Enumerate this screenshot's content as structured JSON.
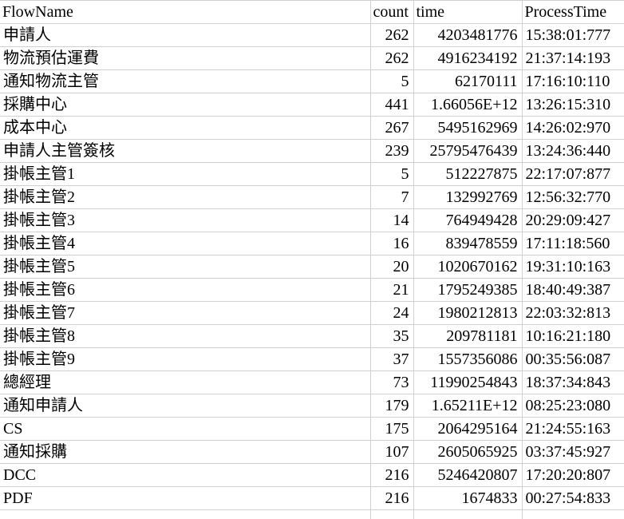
{
  "colors": {
    "gridline": "#d0d0d0",
    "text": "#000000",
    "background": "#ffffff"
  },
  "table": {
    "columns": [
      {
        "key": "flowname",
        "label": "FlowName",
        "align": "left"
      },
      {
        "key": "count",
        "label": "count",
        "align": "right"
      },
      {
        "key": "time",
        "label": "time",
        "align": "right"
      },
      {
        "key": "processtime",
        "label": "ProcessTime",
        "align": "left"
      }
    ],
    "rows": [
      [
        "申請人",
        "262",
        "4203481776",
        "15:38:01:777"
      ],
      [
        "物流預估運費",
        "262",
        "4916234192",
        "21:37:14:193"
      ],
      [
        "通知物流主管",
        "5",
        "62170111",
        "17:16:10:110"
      ],
      [
        "採購中心",
        "441",
        "1.66056E+12",
        "13:26:15:310"
      ],
      [
        "成本中心",
        "267",
        "5495162969",
        "14:26:02:970"
      ],
      [
        "申請人主管簽核",
        "239",
        "25795476439",
        "13:24:36:440"
      ],
      [
        "掛帳主管1",
        "5",
        "512227875",
        "22:17:07:877"
      ],
      [
        "掛帳主管2",
        "7",
        "132992769",
        "12:56:32:770"
      ],
      [
        "掛帳主管3",
        "14",
        "764949428",
        "20:29:09:427"
      ],
      [
        "掛帳主管4",
        "16",
        "839478559",
        "17:11:18:560"
      ],
      [
        "掛帳主管5",
        "20",
        "1020670162",
        "19:31:10:163"
      ],
      [
        "掛帳主管6",
        "21",
        "1795249385",
        "18:40:49:387"
      ],
      [
        "掛帳主管7",
        "24",
        "1980212813",
        "22:03:32:813"
      ],
      [
        "掛帳主管8",
        "35",
        "209781181",
        "10:16:21:180"
      ],
      [
        "掛帳主管9",
        "37",
        "1557356086",
        "00:35:56:087"
      ],
      [
        "總經理",
        "73",
        "11990254843",
        "18:37:34:843"
      ],
      [
        "通知申請人",
        "179",
        "1.65211E+12",
        "08:25:23:080"
      ],
      [
        "CS",
        "175",
        "2064295164",
        "21:24:55:163"
      ],
      [
        "通知採購",
        "107",
        "2605065925",
        "03:37:45:927"
      ],
      [
        "DCC",
        "216",
        "5246420807",
        "17:20:20:807"
      ],
      [
        "PDF",
        "216",
        "1674833",
        "00:27:54:833"
      ]
    ]
  }
}
